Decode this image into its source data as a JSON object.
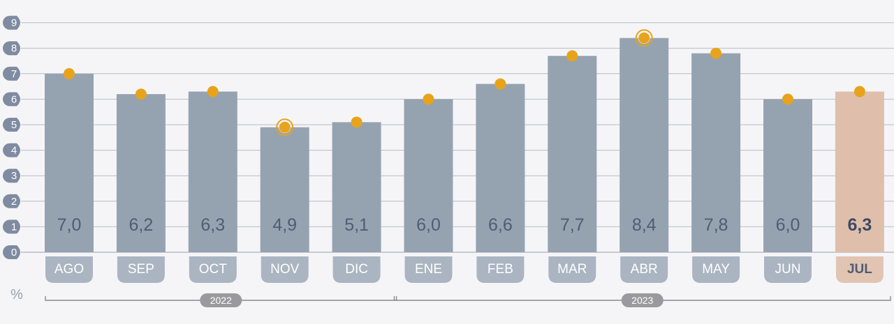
{
  "chart_data": {
    "type": "bar",
    "unit_label": "%",
    "categories": [
      "AGO",
      "SEP",
      "OCT",
      "NOV",
      "DIC",
      "ENE",
      "FEB",
      "MAR",
      "ABR",
      "MAY",
      "JUN",
      "JUL"
    ],
    "values": [
      7.0,
      6.2,
      6.3,
      4.9,
      5.1,
      6.0,
      6.6,
      7.7,
      8.4,
      7.8,
      6.0,
      6.3
    ],
    "value_labels": [
      "7,0",
      "6,2",
      "6,3",
      "4,9",
      "5,1",
      "6,0",
      "6,6",
      "7,7",
      "8,4",
      "7,8",
      "6,0",
      "6,3"
    ],
    "marker_values": [
      7.0,
      6.2,
      6.3,
      4.9,
      5.1,
      6.0,
      6.6,
      7.7,
      8.4,
      7.8,
      6.0,
      6.3
    ],
    "ringed_markers": [
      "NOV",
      "ABR"
    ],
    "highlight_category": "JUL",
    "yticks": [
      "0",
      "1",
      "2",
      "3",
      "4",
      "5",
      "6",
      "7",
      "8",
      "9"
    ],
    "ylim": [
      0,
      9
    ],
    "grid": true,
    "year_groups": [
      {
        "label": "2022",
        "from": "AGO",
        "to": "DIC"
      },
      {
        "label": "2023",
        "from": "ENE",
        "to": "JUL"
      }
    ],
    "colors": {
      "bar": "#95a3b1",
      "bar_highlight": "#dfbfab",
      "marker": "#e7a31c",
      "tick_badge": "#7f8ba0",
      "cat_badge": "#aab5c1",
      "cat_badge_highlight": "#e2c4b2",
      "grid": "#b8bcc6",
      "year_badge": "#9a9a9e"
    }
  }
}
